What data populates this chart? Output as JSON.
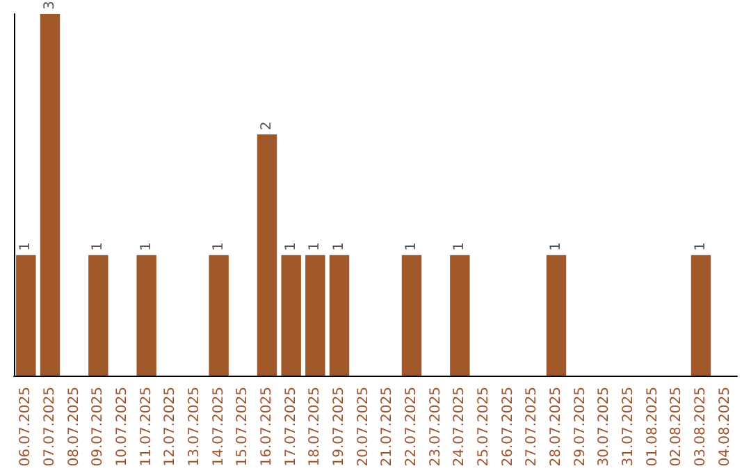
{
  "chart_data": {
    "type": "bar",
    "categories": [
      "06.07.2025",
      "07.07.2025",
      "08.07.2025",
      "09.07.2025",
      "10.07.2025",
      "11.07.2025",
      "12.07.2025",
      "13.07.2025",
      "14.07.2025",
      "15.07.2025",
      "16.07.2025",
      "17.07.2025",
      "18.07.2025",
      "19.07.2025",
      "20.07.2025",
      "21.07.2025",
      "22.07.2025",
      "23.07.2025",
      "24.07.2025",
      "25.07.2025",
      "26.07.2025",
      "27.07.2025",
      "28.07.2025",
      "29.07.2025",
      "30.07.2025",
      "31.07.2025",
      "01.08.2025",
      "02.08.2025",
      "03.08.2025",
      "04.08.2025"
    ],
    "values": [
      1,
      3,
      0,
      1,
      0,
      1,
      0,
      0,
      1,
      0,
      2,
      1,
      1,
      1,
      0,
      0,
      1,
      0,
      1,
      0,
      0,
      0,
      1,
      0,
      0,
      0,
      0,
      0,
      1,
      0
    ],
    "value_labels": [
      "1",
      "3",
      null,
      "1",
      null,
      "1",
      null,
      null,
      "1",
      null,
      "2",
      "1",
      "1",
      "1",
      null,
      null,
      "1",
      null,
      "1",
      null,
      null,
      null,
      "1",
      null,
      null,
      null,
      null,
      null,
      "1",
      null
    ],
    "color": "#a0572a",
    "tick_labels": "x",
    "grid": false
  }
}
